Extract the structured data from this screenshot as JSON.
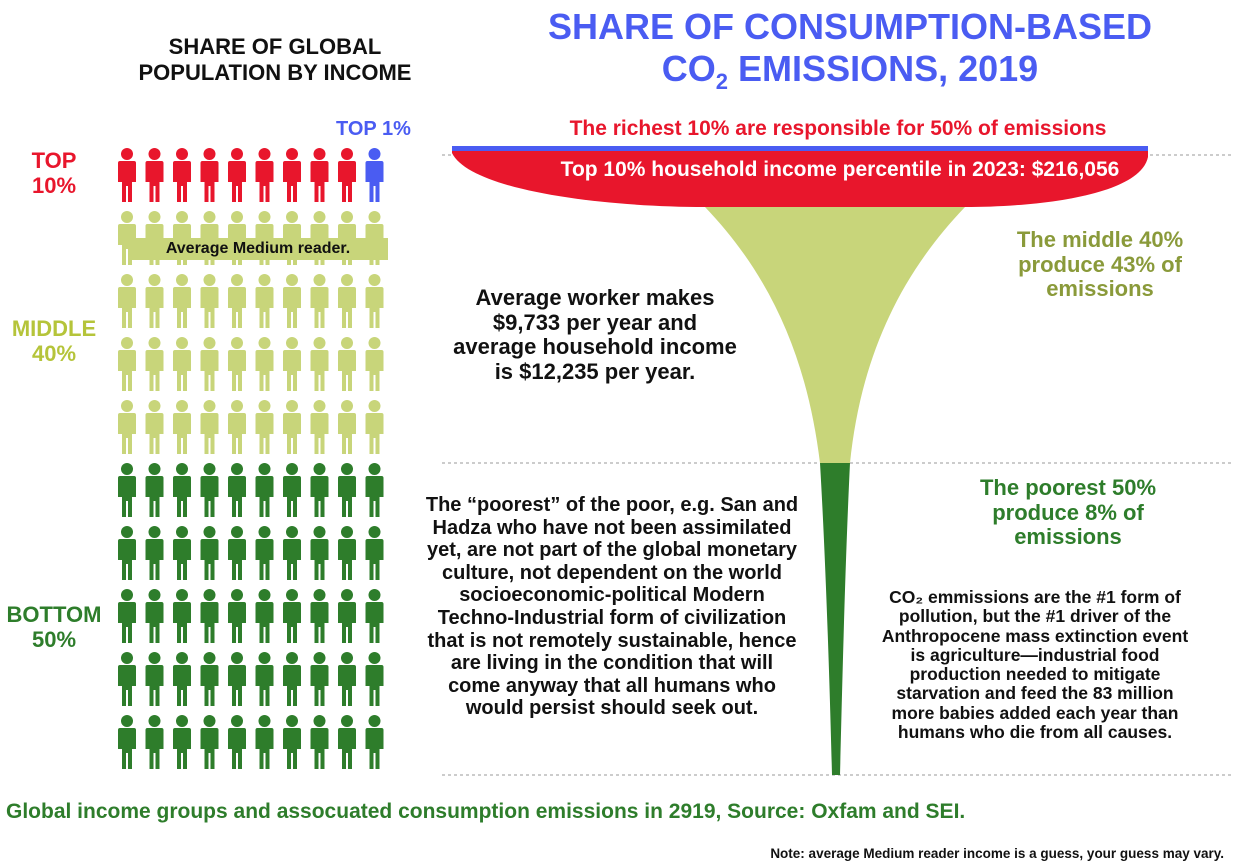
{
  "left_title": "SHARE OF GLOBAL\nPOPULATION BY INCOME",
  "main_title": {
    "line1": "SHARE OF CONSUMPTION-BASED",
    "line2_prefix": "CO",
    "line2_subscript": "2",
    "line2_suffix": " EMISSIONS, 2019"
  },
  "groups": {
    "top1": "TOP 1%",
    "top10": "TOP\n10%",
    "middle": "MIDDLE\n40%",
    "bottom": "BOTTOM\n50%"
  },
  "annotations": {
    "richest": "The richest 10% are responsible for 50% of emissions",
    "top10_income": "Top 10% household income percentile in 2023: $216,056",
    "medium_reader": "Average Medium reader.",
    "middle": "The middle 40%\nproduce 43% of\nemissions",
    "worker": "Average worker makes\n$9,733 per year and\naverage household income\nis $12,235 per year.",
    "poorest": "The poorest 50%\nproduce 8% of\nemissions",
    "san_hadza": "The “poorest” of the poor, e.g. San and\nHadza who have not been assimilated\nyet, are not part of the global monetary\nculture, not dependent on the world\nsocioeconomic-political Modern\nTechno-Industrial form of civilization\nthat is not remotely sustainable, hence\nare living in the condition that will\ncome anyway that all humans who\nwould persist should seek out.",
    "co2": "CO₂ emmissions are the #1 form of\npollution, but the #1 driver of the\nAnthropocene mass extinction event\nis agriculture—industrial food\nproduction needed to mitigate\nstarvation and feed the 83 million\nmore babies added each year than\nhumans who die from all causes."
  },
  "footer": {
    "source": "Global income groups and assocuated consumption emissions in 2919, Source: Oxfam and SEI.",
    "note": "Note: average Medium reader income is a guess, your guess may vary."
  },
  "colors": {
    "top1": "#4a5cf2",
    "top10": "#e8162c",
    "middle": "#c8d57a",
    "bottom": "#2e7d2b",
    "title": "#4a5cf2"
  },
  "chart_data": {
    "type": "pictogram-funnel",
    "people_per_row": 10,
    "series": [
      {
        "name": "TOP 1%",
        "population_share": 1,
        "emissions_share": null,
        "color": "#4a5cf2"
      },
      {
        "name": "TOP 10%",
        "population_share": 10,
        "emissions_share": 50,
        "color": "#e8162c"
      },
      {
        "name": "MIDDLE 40%",
        "population_share": 40,
        "emissions_share": 43,
        "color": "#c8d57a"
      },
      {
        "name": "BOTTOM 50%",
        "population_share": 50,
        "emissions_share": 8,
        "color": "#2e7d2b"
      }
    ]
  }
}
